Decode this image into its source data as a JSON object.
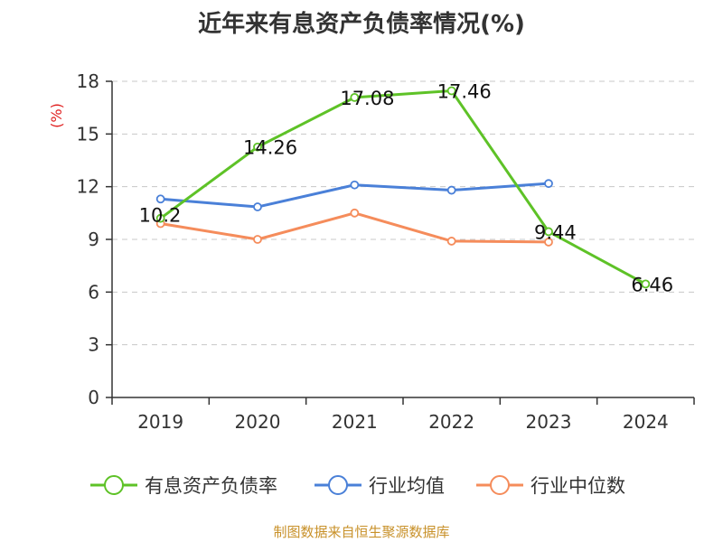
{
  "chart_data": {
    "type": "line",
    "title": "近年来有息资产负债率情况(%)",
    "ylabel": "(%)",
    "xlabel": "",
    "categories": [
      "2019",
      "2020",
      "2021",
      "2022",
      "2023",
      "2024"
    ],
    "ylim": [
      0,
      18
    ],
    "yticks": [
      0,
      3,
      6,
      9,
      12,
      15,
      18
    ],
    "grid": "horizontal-dashed",
    "legend": "bottom",
    "series": [
      {
        "name": "有息资产负债率",
        "color": "#5ec227",
        "values": [
          10.2,
          14.26,
          17.08,
          17.46,
          9.44,
          6.46
        ],
        "labels": [
          "10.2",
          "14.26",
          "17.08",
          "17.46",
          "9.44",
          "6.46"
        ]
      },
      {
        "name": "行业均值",
        "color": "#4a80d8",
        "values": [
          11.3,
          10.85,
          12.1,
          11.8,
          12.18,
          null
        ]
      },
      {
        "name": "行业中位数",
        "color": "#f58c5b",
        "values": [
          9.9,
          9.0,
          10.5,
          8.9,
          8.85,
          null
        ]
      }
    ]
  },
  "source": "制图数据来自恒生聚源数据库"
}
